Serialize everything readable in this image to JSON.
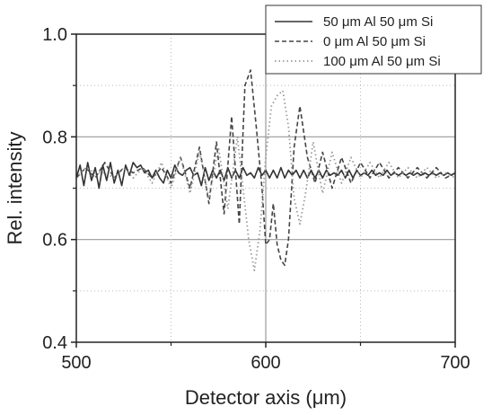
{
  "chart_data": {
    "type": "line",
    "xlabel": "Detector axis (μm)",
    "ylabel": "Rel. intensity",
    "xlim": [
      500,
      700
    ],
    "ylim": [
      0.4,
      1.0
    ],
    "xticks": [
      500,
      600,
      700
    ],
    "xtick_labels": [
      "500",
      "600",
      "700"
    ],
    "yticks": [
      0.4,
      0.6,
      0.8,
      1.0
    ],
    "ytick_labels": [
      "0.4",
      "0.6",
      "0.8",
      "1.0"
    ],
    "grid": true,
    "legend_position": "top-right",
    "series": [
      {
        "name": "50 μm Al 50 μm Si",
        "style": "solid",
        "color": "#333333",
        "x": [
          500,
          502,
          504,
          506,
          508,
          510,
          512,
          514,
          516,
          518,
          520,
          522,
          524,
          526,
          528,
          530,
          532,
          534,
          536,
          538,
          540,
          542,
          544,
          546,
          548,
          550,
          552,
          554,
          556,
          558,
          560,
          562,
          564,
          566,
          568,
          570,
          572,
          574,
          576,
          578,
          580,
          582,
          584,
          586,
          588,
          590,
          592,
          594,
          596,
          598,
          600,
          602,
          604,
          606,
          608,
          610,
          612,
          614,
          616,
          618,
          620,
          622,
          624,
          626,
          628,
          630,
          632,
          634,
          636,
          638,
          640,
          642,
          644,
          646,
          648,
          650,
          652,
          654,
          656,
          658,
          660,
          662,
          664,
          666,
          668,
          670,
          672,
          674,
          676,
          678,
          680,
          682,
          684,
          686,
          688,
          690,
          692,
          694,
          696,
          698,
          700
        ],
        "y": [
          0.72,
          0.745,
          0.705,
          0.75,
          0.715,
          0.74,
          0.7,
          0.745,
          0.715,
          0.75,
          0.71,
          0.735,
          0.705,
          0.745,
          0.725,
          0.75,
          0.74,
          0.745,
          0.73,
          0.735,
          0.72,
          0.735,
          0.72,
          0.71,
          0.735,
          0.72,
          0.745,
          0.73,
          0.725,
          0.735,
          0.74,
          0.725,
          0.73,
          0.705,
          0.74,
          0.715,
          0.735,
          0.72,
          0.735,
          0.715,
          0.74,
          0.72,
          0.735,
          0.72,
          0.74,
          0.725,
          0.73,
          0.72,
          0.74,
          0.725,
          0.735,
          0.72,
          0.735,
          0.72,
          0.74,
          0.72,
          0.735,
          0.725,
          0.735,
          0.72,
          0.735,
          0.72,
          0.735,
          0.72,
          0.735,
          0.72,
          0.735,
          0.725,
          0.73,
          0.725,
          0.735,
          0.72,
          0.735,
          0.72,
          0.735,
          0.725,
          0.73,
          0.725,
          0.735,
          0.725,
          0.73,
          0.725,
          0.735,
          0.725,
          0.73,
          0.725,
          0.73,
          0.725,
          0.73,
          0.725,
          0.73,
          0.725,
          0.73,
          0.725,
          0.73,
          0.725,
          0.73,
          0.725,
          0.73,
          0.725,
          0.73
        ]
      },
      {
        "name": "0 μm Al 50 μm Si",
        "style": "dashed",
        "color": "#444444",
        "x": [
          500,
          505,
          510,
          515,
          520,
          525,
          530,
          535,
          540,
          545,
          550,
          555,
          560,
          565,
          570,
          574,
          578,
          582,
          586,
          589,
          592,
          595,
          598,
          600,
          602,
          604,
          606,
          608,
          610,
          612,
          615,
          618,
          622,
          626,
          630,
          635,
          640,
          645,
          650,
          655,
          660,
          665,
          670,
          675,
          680,
          685,
          690,
          695,
          700
        ],
        "y": [
          0.72,
          0.74,
          0.72,
          0.75,
          0.72,
          0.74,
          0.73,
          0.74,
          0.72,
          0.74,
          0.71,
          0.76,
          0.7,
          0.78,
          0.67,
          0.79,
          0.65,
          0.84,
          0.63,
          0.9,
          0.93,
          0.82,
          0.7,
          0.59,
          0.6,
          0.67,
          0.59,
          0.56,
          0.55,
          0.6,
          0.78,
          0.86,
          0.76,
          0.71,
          0.77,
          0.7,
          0.76,
          0.71,
          0.75,
          0.72,
          0.75,
          0.72,
          0.74,
          0.72,
          0.74,
          0.72,
          0.74,
          0.72,
          0.73
        ]
      },
      {
        "name": "100 μm Al 50 μm Si",
        "style": "dotted",
        "color": "#9a9a9a",
        "x": [
          500,
          505,
          510,
          515,
          520,
          525,
          530,
          535,
          540,
          545,
          550,
          555,
          560,
          565,
          570,
          575,
          580,
          585,
          588,
          591,
          594,
          597,
          600,
          603,
          606,
          609,
          612,
          615,
          618,
          621,
          625,
          630,
          635,
          640,
          645,
          650,
          655,
          660,
          665,
          670,
          675,
          680,
          685,
          690,
          695,
          700
        ],
        "y": [
          0.72,
          0.74,
          0.73,
          0.73,
          0.72,
          0.74,
          0.72,
          0.74,
          0.71,
          0.75,
          0.7,
          0.76,
          0.69,
          0.77,
          0.68,
          0.78,
          0.66,
          0.8,
          0.7,
          0.6,
          0.54,
          0.62,
          0.76,
          0.86,
          0.88,
          0.89,
          0.82,
          0.68,
          0.63,
          0.69,
          0.79,
          0.69,
          0.77,
          0.71,
          0.76,
          0.72,
          0.75,
          0.72,
          0.75,
          0.72,
          0.74,
          0.72,
          0.74,
          0.72,
          0.73,
          0.72
        ]
      }
    ]
  }
}
